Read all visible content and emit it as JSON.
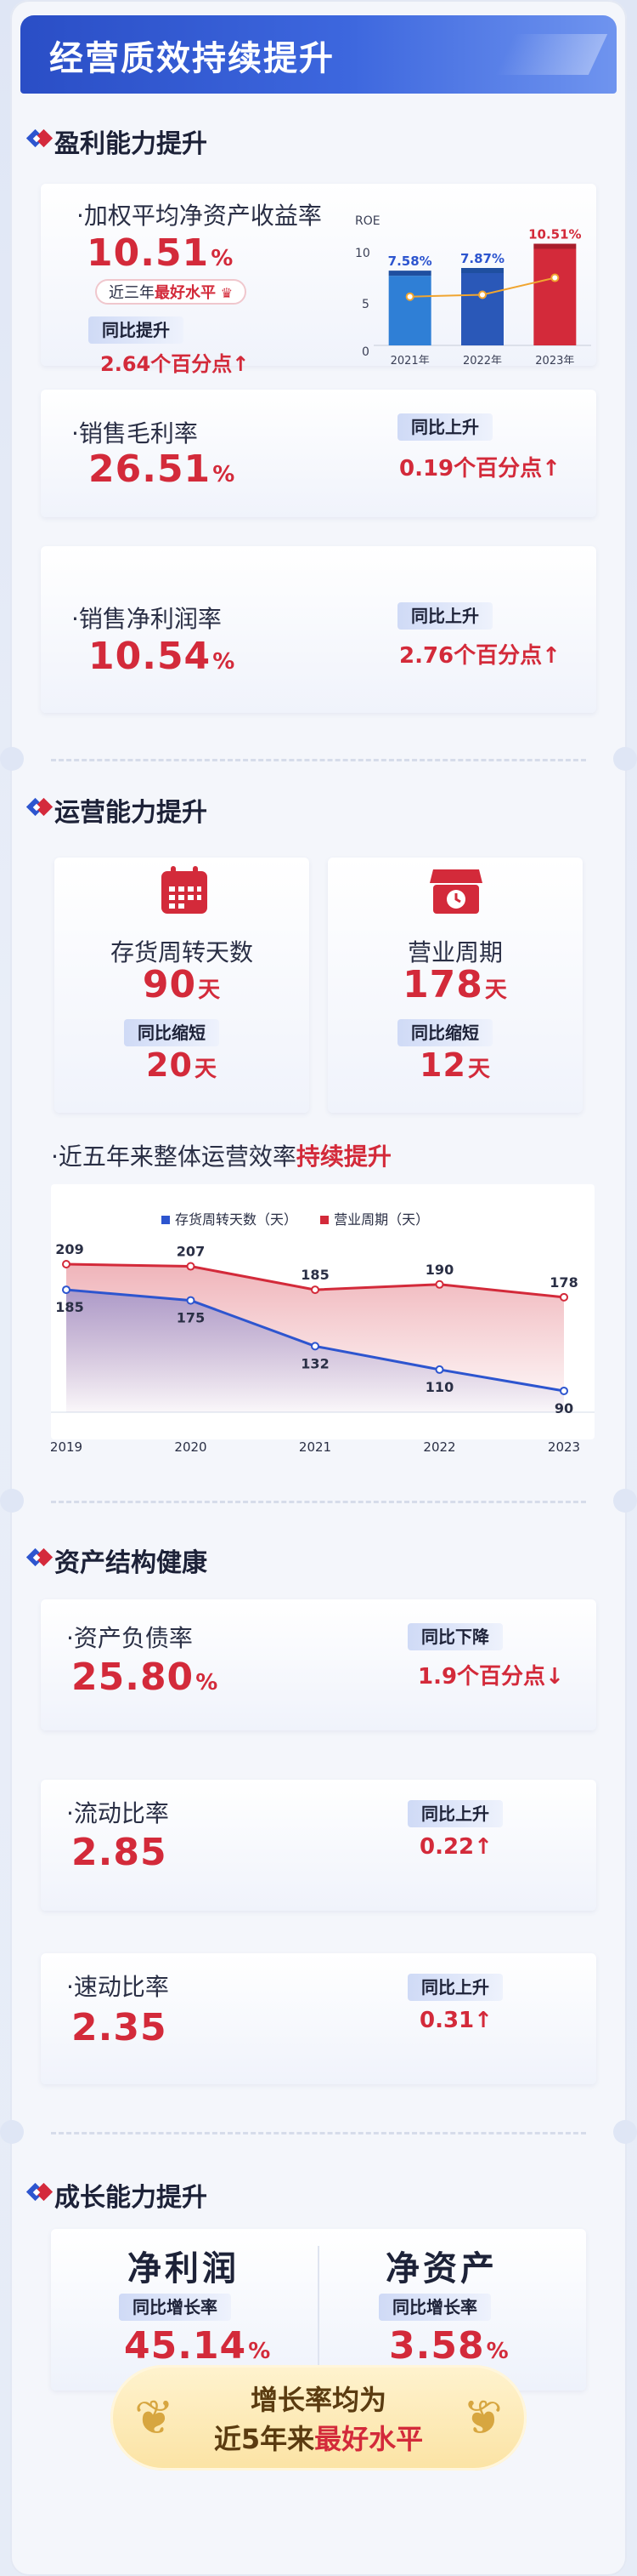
{
  "title": "经营质效持续提升",
  "colors": {
    "accent_red": "#d32a3a",
    "accent_blue": "#2d55cf",
    "bar_blue": "#2f7fd6",
    "bar_red": "#d32a3a"
  },
  "profit": {
    "heading": "盈利能力提升",
    "roe": {
      "label": "·加权平均净资产收益率",
      "value": "10.51",
      "unit": "%",
      "badge_prefix": "近三年",
      "badge_highlight": "最好水平",
      "badge_icon": "crown-icon",
      "yoy_label": "同比提升",
      "yoy_value": "2.64个百分点",
      "yoy_arrow": "↑"
    },
    "gross": {
      "label": "·销售毛利率",
      "value": "26.51",
      "unit": "%",
      "yoy_label": "同比上升",
      "yoy_value": "0.19个百分点",
      "yoy_arrow": "↑"
    },
    "net": {
      "label": "·销售净利润率",
      "value": "10.54",
      "unit": "%",
      "yoy_label": "同比上升",
      "yoy_value": "2.76个百分点",
      "yoy_arrow": "↑"
    }
  },
  "operation": {
    "heading": "运营能力提升",
    "inventory": {
      "label": "存货周转天数",
      "value": "90",
      "unit": "天",
      "yoy_label": "同比缩短",
      "yoy_value": "20",
      "yoy_unit": "天",
      "icon": "calendar-icon"
    },
    "cycle": {
      "label": "营业周期",
      "value": "178",
      "unit": "天",
      "yoy_label": "同比缩短",
      "yoy_value": "12",
      "yoy_unit": "天",
      "icon": "store-icon"
    },
    "trend_prefix": "·近五年来整体运营效率",
    "trend_highlight": "持续提升"
  },
  "assets": {
    "heading": "资产结构健康",
    "debt": {
      "label": "·资产负债率",
      "value": "25.80",
      "unit": "%",
      "yoy_label": "同比下降",
      "yoy_value": "1.9个百分点",
      "yoy_arrow": "↓"
    },
    "current": {
      "label": "·流动比率",
      "value": "2.85",
      "yoy_label": "同比上升",
      "yoy_value": "0.22",
      "yoy_arrow": "↑"
    },
    "quick": {
      "label": "·速动比率",
      "value": "2.35",
      "yoy_label": "同比上升",
      "yoy_value": "0.31",
      "yoy_arrow": "↑"
    }
  },
  "growth": {
    "heading": "成长能力提升",
    "profit": {
      "label": "净利润",
      "sub": "同比增长率",
      "value": "45.14",
      "unit": "%"
    },
    "equity": {
      "label": "净资产",
      "sub": "同比增长率",
      "value": "3.58",
      "unit": "%"
    },
    "banner_line1": "增长率均为",
    "banner_line2_prefix": "近5年来",
    "banner_line2_highlight": "最好水平"
  },
  "chart_data": [
    {
      "type": "bar",
      "ylabel": "ROE",
      "ylim": [
        0,
        10
      ],
      "yticks": [
        "10",
        "5",
        "0"
      ],
      "categories": [
        "2021年",
        "2022年",
        "2023年"
      ],
      "values": [
        7.58,
        7.87,
        10.51
      ],
      "value_labels": [
        "7.58%",
        "7.87%",
        "10.51%"
      ],
      "overlay_line": true
    },
    {
      "type": "area",
      "x": [
        "2019",
        "2020",
        "2021",
        "2022",
        "2023"
      ],
      "series": [
        {
          "name": "存货周转天数（天）",
          "values": [
            185,
            175,
            132,
            110,
            90
          ],
          "color": "#2d55cf"
        },
        {
          "name": "营业周期（天）",
          "values": [
            209,
            207,
            185,
            190,
            178
          ],
          "color": "#d32a3a"
        }
      ],
      "legend": "top"
    }
  ]
}
